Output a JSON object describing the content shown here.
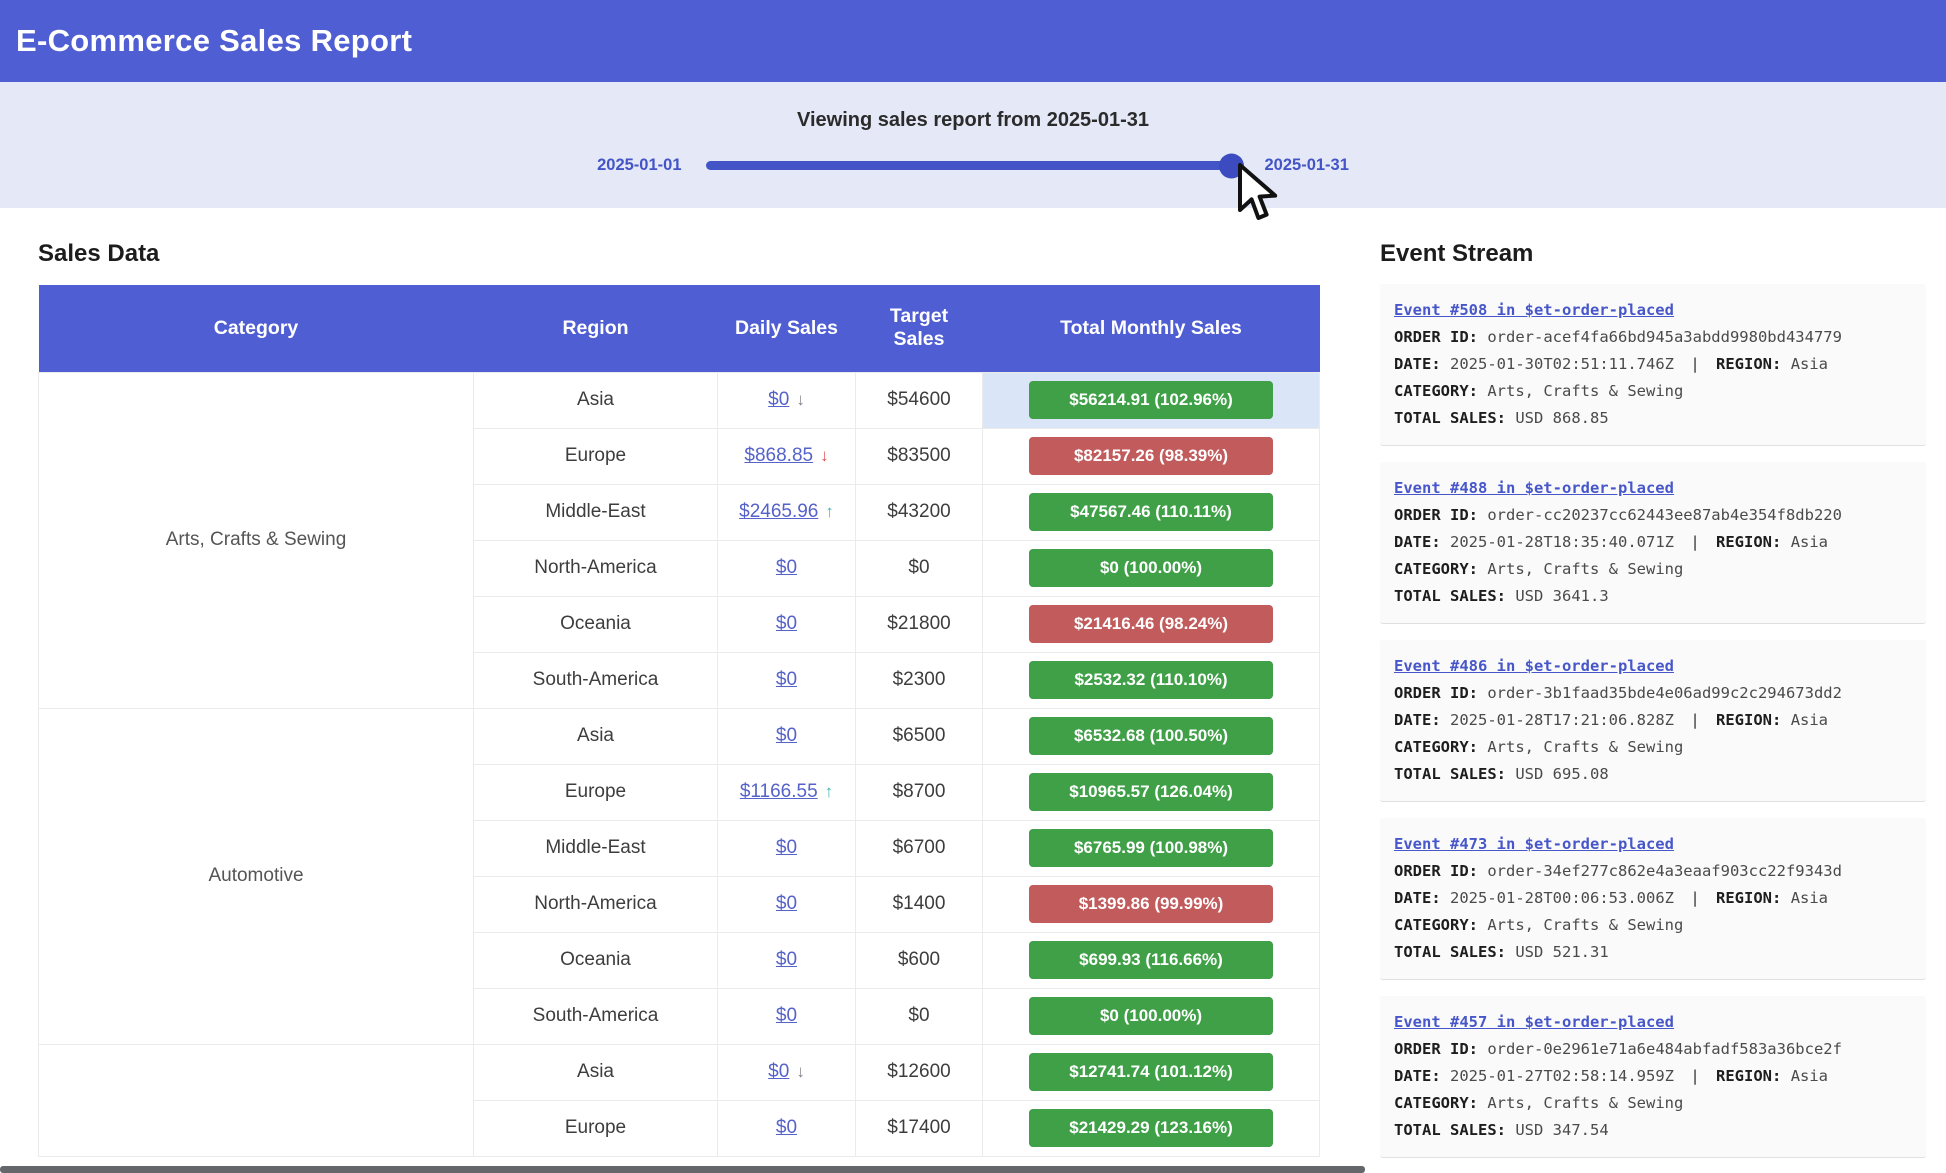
{
  "header": {
    "title": "E-Commerce Sales Report"
  },
  "slider": {
    "title": "Viewing sales report from 2025-01-31",
    "min_label": "2025-01-01",
    "max_label": "2025-01-31"
  },
  "sales": {
    "heading": "Sales Data",
    "columns": [
      "Category",
      "Region",
      "Daily Sales",
      "Target Sales",
      "Total Monthly Sales"
    ],
    "rows": [
      {
        "category": "Arts, Crafts & Sewing",
        "rowspan": 6,
        "region": "Asia",
        "daily": "$0",
        "arrow": "↓",
        "arrow_color": "gray",
        "target": "$54600",
        "total": "$56214.91 (102.96%)",
        "status": "green",
        "highlight": true
      },
      {
        "region": "Europe",
        "daily": "$868.85",
        "arrow": "↓",
        "arrow_color": "red",
        "target": "$83500",
        "total": "$82157.26 (98.39%)",
        "status": "red"
      },
      {
        "region": "Middle-East",
        "daily": "$2465.96",
        "arrow": "↑",
        "arrow_color": "teal",
        "target": "$43200",
        "total": "$47567.46 (110.11%)",
        "status": "green"
      },
      {
        "region": "North-America",
        "daily": "$0",
        "target": "$0",
        "total": "$0 (100.00%)",
        "status": "green"
      },
      {
        "region": "Oceania",
        "daily": "$0",
        "target": "$21800",
        "total": "$21416.46 (98.24%)",
        "status": "red"
      },
      {
        "region": "South-America",
        "daily": "$0",
        "target": "$2300",
        "total": "$2532.32 (110.10%)",
        "status": "green"
      },
      {
        "category": "Automotive",
        "rowspan": 6,
        "region": "Asia",
        "daily": "$0",
        "target": "$6500",
        "total": "$6532.68 (100.50%)",
        "status": "green"
      },
      {
        "region": "Europe",
        "daily": "$1166.55",
        "arrow": "↑",
        "arrow_color": "teal",
        "target": "$8700",
        "total": "$10965.57 (126.04%)",
        "status": "green"
      },
      {
        "region": "Middle-East",
        "daily": "$0",
        "target": "$6700",
        "total": "$6765.99 (100.98%)",
        "status": "green"
      },
      {
        "region": "North-America",
        "daily": "$0",
        "target": "$1400",
        "total": "$1399.86 (99.99%)",
        "status": "red"
      },
      {
        "region": "Oceania",
        "daily": "$0",
        "target": "$600",
        "total": "$699.93 (116.66%)",
        "status": "green"
      },
      {
        "region": "South-America",
        "daily": "$0",
        "target": "$0",
        "total": "$0 (100.00%)",
        "status": "green"
      },
      {
        "category": "",
        "rowspan": 2,
        "region": "Asia",
        "daily": "$0",
        "arrow": "↓",
        "arrow_color": "gray",
        "target": "$12600",
        "total": "$12741.74 (101.12%)",
        "status": "green"
      },
      {
        "region": "Europe",
        "daily": "$0",
        "target": "$17400",
        "total": "$21429.29 (123.16%)",
        "status": "green"
      }
    ]
  },
  "events": {
    "heading": "Event Stream",
    "labels": {
      "order_id": "ORDER ID:",
      "date": "DATE:",
      "region": "REGION:",
      "category": "CATEGORY:",
      "total_sales": "TOTAL SALES:",
      "separator": "|"
    },
    "items": [
      {
        "title": "Event #508 in $et-order-placed",
        "order_id": "order-acef4fa66bd945a3abdd9980bd434779",
        "date": "2025-01-30T02:51:11.746Z",
        "region": "Asia",
        "category": "Arts, Crafts & Sewing",
        "total_sales": "USD 868.85"
      },
      {
        "title": "Event #488 in $et-order-placed",
        "order_id": "order-cc20237cc62443ee87ab4e354f8db220",
        "date": "2025-01-28T18:35:40.071Z",
        "region": "Asia",
        "category": "Arts, Crafts & Sewing",
        "total_sales": "USD 3641.3"
      },
      {
        "title": "Event #486 in $et-order-placed",
        "order_id": "order-3b1faad35bde4e06ad99c2c294673dd2",
        "date": "2025-01-28T17:21:06.828Z",
        "region": "Asia",
        "category": "Arts, Crafts & Sewing",
        "total_sales": "USD 695.08"
      },
      {
        "title": "Event #473 in $et-order-placed",
        "order_id": "order-34ef277c862e4a3eaaf903cc22f9343d",
        "date": "2025-01-28T00:06:53.006Z",
        "region": "Asia",
        "category": "Arts, Crafts & Sewing",
        "total_sales": "USD 521.31"
      },
      {
        "title": "Event #457 in $et-order-placed",
        "order_id": "order-0e2961e71a6e484abfadf583a36bce2f",
        "date": "2025-01-27T02:58:14.959Z",
        "region": "Asia",
        "category": "Arts, Crafts & Sewing",
        "total_sales": "USD 347.54"
      }
    ]
  },
  "colors": {
    "accent_blue": "#4f5ed3",
    "badge_green": "#3fa047",
    "badge_red": "#c25b5c",
    "link_blue": "#5562c9",
    "highlight_blue": "#dbe5f8"
  }
}
